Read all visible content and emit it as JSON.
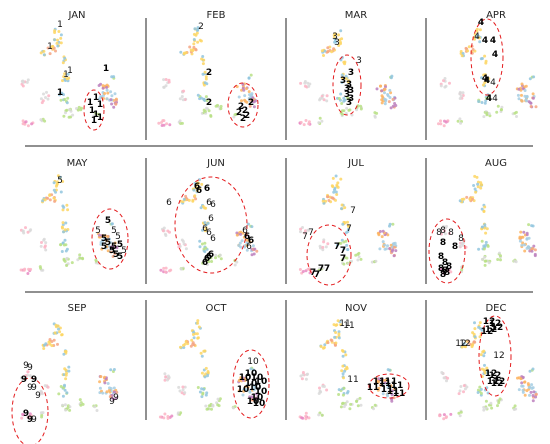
{
  "chart_data": {
    "type": "scatter",
    "panels": [
      {
        "title": "JAN",
        "label": "1"
      },
      {
        "title": "FEB",
        "label": "2"
      },
      {
        "title": "MAR",
        "label": "3"
      },
      {
        "title": "APR",
        "label": "4"
      },
      {
        "title": "MAY",
        "label": "5"
      },
      {
        "title": "JUN",
        "label": "6"
      },
      {
        "title": "JUL",
        "label": "7"
      },
      {
        "title": "AUG",
        "label": "8"
      },
      {
        "title": "SEP",
        "label": "9"
      },
      {
        "title": "OCT",
        "label": "10"
      },
      {
        "title": "NOV",
        "label": "11"
      },
      {
        "title": "DEC",
        "label": "12"
      }
    ],
    "grid": "3x4",
    "highlight_style": "red dashed ellipse",
    "colors": {
      "divider": "#222222",
      "highlight": "#e31a1c",
      "background_points": [
        "#f4a582",
        "#fdd663",
        "#92c5de",
        "#b8e186",
        "#d9d9d9",
        "#fbb4c4",
        "#e78ac3",
        "#a6cee3",
        "#fdb462",
        "#bc80bd"
      ]
    }
  }
}
